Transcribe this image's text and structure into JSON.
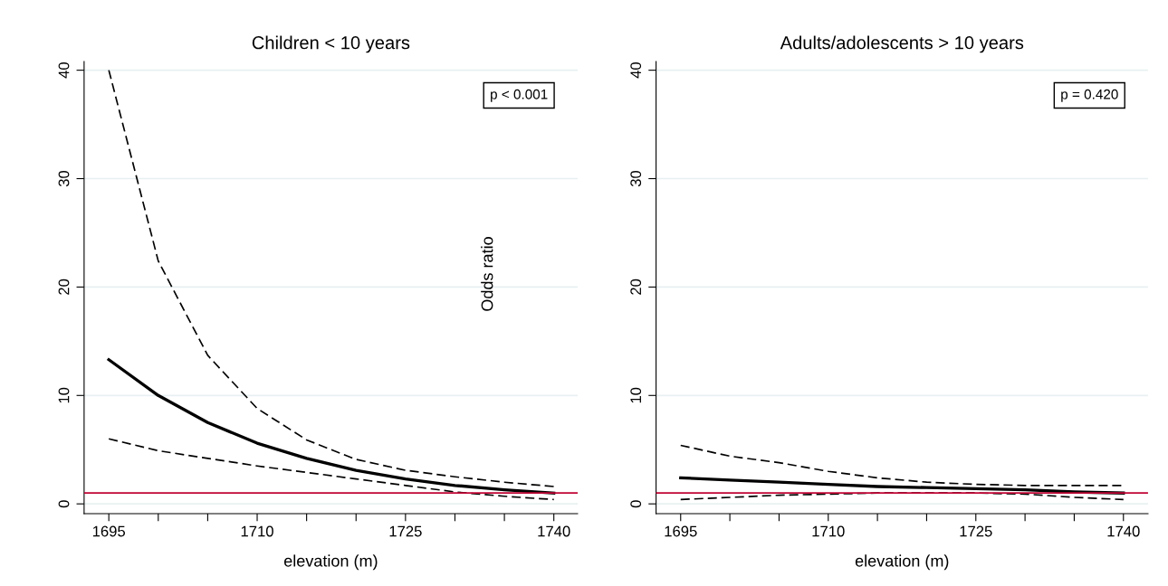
{
  "chart_data": [
    {
      "type": "line",
      "title": "Children < 10 years",
      "xlabel": "elevation (m)",
      "ylabel": "Odds ratio",
      "x": [
        1695,
        1700,
        1705,
        1710,
        1715,
        1720,
        1725,
        1730,
        1735,
        1740
      ],
      "series": [
        {
          "color": "#000000",
          "line_style": "solid",
          "values": [
            13.3,
            10.0,
            7.5,
            5.6,
            4.2,
            3.1,
            2.3,
            1.7,
            1.3,
            1.0
          ]
        },
        {
          "color": "#000000",
          "line_style": "dashed",
          "values": [
            40,
            22.4,
            13.7,
            8.8,
            5.9,
            4.1,
            3.1,
            2.5,
            2.0,
            1.6
          ]
        },
        {
          "color": "#000000",
          "line_style": "dashed",
          "values": [
            6.0,
            4.9,
            4.2,
            3.5,
            2.9,
            2.3,
            1.7,
            1.1,
            0.7,
            0.4
          ]
        }
      ],
      "xlim": [
        1692.5,
        1742.4
      ],
      "ylim": [
        -0.9,
        40.8
      ],
      "xticks": [
        1695,
        {
          "value": 1700,
          "label": null
        },
        {
          "value": 1705,
          "label": null
        },
        1710,
        {
          "value": 1715,
          "label": null
        },
        {
          "value": 1720,
          "label": null
        },
        1725,
        {
          "value": 1730,
          "label": null
        },
        {
          "value": 1735,
          "label": null
        },
        1740
      ],
      "yticks": [
        0,
        10,
        20,
        30,
        40
      ],
      "ref_lines": [
        {
          "axis": "y",
          "value": 1,
          "color": "#c10534"
        }
      ],
      "grid": "y",
      "marker": "none",
      "annotations": [
        "p < 0.001"
      ]
    },
    {
      "type": "line",
      "title": "Adults/adolescents > 10 years",
      "xlabel": "elevation (m)",
      "x": [
        1695,
        1700,
        1705,
        1710,
        1715,
        1720,
        1725,
        1730,
        1735,
        1740
      ],
      "series": [
        {
          "color": "#000000",
          "line_style": "solid",
          "values": [
            2.4,
            2.2,
            2.0,
            1.8,
            1.6,
            1.5,
            1.4,
            1.3,
            1.1,
            1.0
          ]
        },
        {
          "color": "#000000",
          "line_style": "dashed",
          "values": [
            5.4,
            4.4,
            3.8,
            3.0,
            2.4,
            2.0,
            1.8,
            1.7,
            1.7,
            1.7
          ]
        },
        {
          "color": "#000000",
          "line_style": "dashed",
          "values": [
            0.4,
            0.6,
            0.8,
            0.9,
            1.0,
            1.0,
            1.0,
            0.9,
            0.6,
            0.4
          ]
        }
      ],
      "xlim": [
        1692.5,
        1742.5
      ],
      "ylim": [
        -0.9,
        40.8
      ],
      "xticks": [
        1695,
        {
          "value": 1700,
          "label": null
        },
        {
          "value": 1705,
          "label": null
        },
        1710,
        {
          "value": 1715,
          "label": null
        },
        {
          "value": 1720,
          "label": null
        },
        1725,
        {
          "value": 1730,
          "label": null
        },
        {
          "value": 1735,
          "label": null
        },
        1740
      ],
      "yticks": [
        0,
        10,
        20,
        30,
        40
      ],
      "ref_lines": [
        {
          "axis": "y",
          "value": 1,
          "color": "#c10534"
        }
      ],
      "grid": "y",
      "marker": "none",
      "annotations": [
        "p = 0.420"
      ]
    }
  ]
}
